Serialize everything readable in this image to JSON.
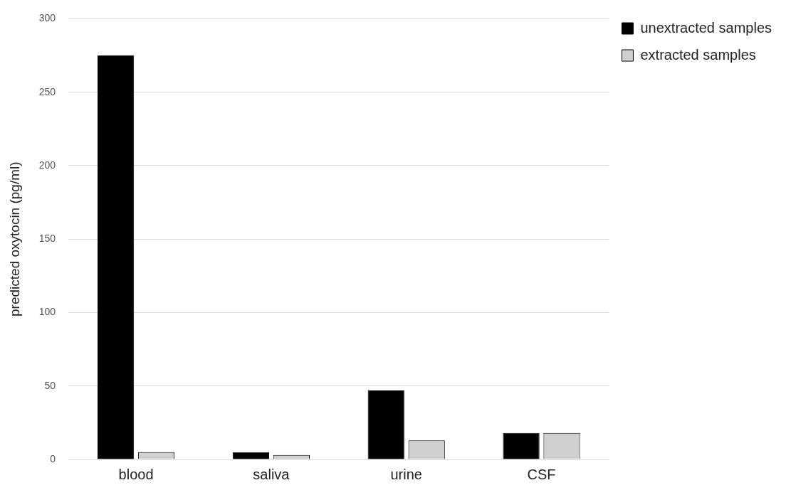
{
  "chart_data": {
    "type": "bar",
    "ylabel": "predicted oxytocin (pg/ml)",
    "categories": [
      "blood",
      "saliva",
      "urine",
      "CSF"
    ],
    "series": [
      {
        "name": "unextracted samples",
        "color": "#000000",
        "values": [
          275,
          5,
          47,
          18
        ]
      },
      {
        "name": "extracted samples",
        "color": "#d0d0d0",
        "values": [
          5,
          3,
          13,
          18
        ]
      }
    ],
    "ylim": [
      0,
      300
    ],
    "yticks": [
      0,
      50,
      100,
      150,
      200,
      250,
      300
    ],
    "grid": "y",
    "legend": "top right"
  }
}
